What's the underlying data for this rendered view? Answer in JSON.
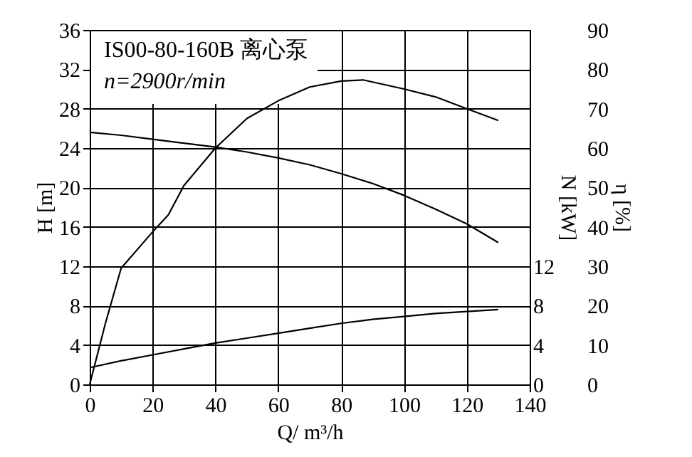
{
  "chart_data": {
    "type": "line",
    "title": "IS00-80-160B 离心泵",
    "annotations": [
      "n=2900r/min"
    ],
    "xlabel": "Q/ m³/h",
    "ylabel": "H [m]",
    "y2label": "N [kW]",
    "y3label": "η [%]",
    "x": [
      0,
      10,
      20,
      30,
      40,
      50,
      60,
      70,
      80,
      90,
      100,
      110,
      120,
      130
    ],
    "xlim": [
      0,
      140
    ],
    "xticks": [
      0,
      20,
      40,
      60,
      80,
      100,
      120,
      140
    ],
    "ylim": [
      0,
      36
    ],
    "yticks": [
      0,
      4,
      8,
      12,
      16,
      20,
      24,
      28,
      32,
      36
    ],
    "y2lim": [
      0,
      36
    ],
    "y2ticks": [
      0,
      4,
      8,
      12
    ],
    "y3lim": [
      0,
      90
    ],
    "y3ticks": [
      0,
      10,
      20,
      30,
      40,
      50,
      60,
      70,
      80,
      90
    ],
    "series": [
      {
        "color": "#000000",
        "axis": "y",
        "values": [
          25.6,
          25.3,
          24.9,
          24.5,
          24.1,
          23.6,
          23.0,
          22.3,
          21.4,
          20.4,
          19.2,
          17.8,
          16.3,
          14.4
        ]
      },
      {
        "color": "#000000",
        "axis": "y2",
        "values": [
          1.7,
          2.4,
          3.0,
          3.6,
          4.2,
          4.7,
          5.2,
          5.7,
          6.2,
          6.6,
          6.9,
          7.2,
          7.4,
          7.6
        ]
      },
      {
        "color": "#000000",
        "axis": "y3",
        "x": [
          0,
          5,
          10,
          20,
          25,
          30,
          40,
          50,
          60,
          70,
          80,
          87,
          100,
          110,
          120,
          130
        ],
        "values": [
          0,
          15.5,
          29.5,
          38.7,
          43,
          50.5,
          60,
          67.5,
          72,
          75.5,
          77,
          77.3,
          75,
          73,
          70,
          67
        ]
      }
    ],
    "grid": true,
    "marker": "none",
    "line_style": "solid"
  }
}
